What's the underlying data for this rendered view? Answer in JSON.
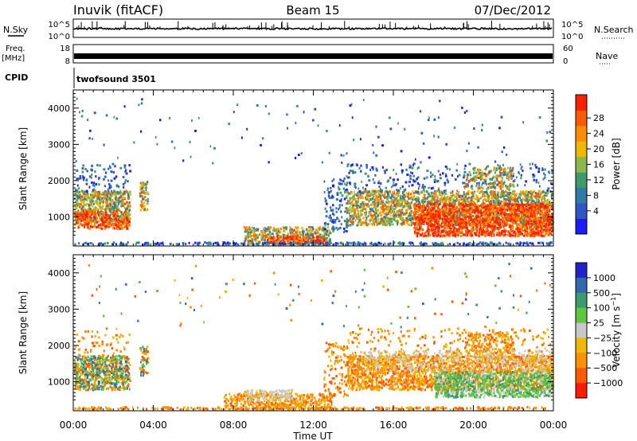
{
  "header": {
    "station": "Inuvik (fitACF)",
    "beam": "Beam 15",
    "date": "07/Dec/2012"
  },
  "strip_labels": {
    "nsky": "N.Sky",
    "nsky_ticks": [
      "10^5",
      "10^0"
    ],
    "nsearch": "N.Search",
    "nsearch_ticks": [
      "10^5",
      "10^0"
    ],
    "freq_top": "Freq.",
    "freq_unit": "[MHz]",
    "freq_ticks": [
      "18",
      "8"
    ],
    "nave": "Nave",
    "nave_ticks": [
      "60",
      "0"
    ],
    "cpid": "CPID",
    "cpid_value": "twofsound 3501"
  },
  "chart_data": [
    {
      "type": "heatmap",
      "name": "power-panel",
      "ylabel": "Slant Range [km]",
      "x_ticks": [
        "00:00",
        "04:00",
        "08:00",
        "12:00",
        "16:00",
        "20:00",
        "00:00"
      ],
      "y_ticks": [
        "1000",
        "2000",
        "3000",
        "4000"
      ],
      "ylim": [
        200,
        4500
      ],
      "xlim_hours": [
        0,
        24
      ],
      "colorbar": {
        "label": "Power [dB]",
        "ticks": [
          "4",
          "8",
          "12",
          "16",
          "20",
          "24",
          "28"
        ],
        "colors": [
          "#1a1aff",
          "#2f55c8",
          "#2f7aa8",
          "#3f9a6a",
          "#8ab84a",
          "#f0b800",
          "#ff8c00",
          "#ff5a00",
          "#ff2000"
        ]
      }
    },
    {
      "type": "heatmap",
      "name": "velocity-panel",
      "ylabel": "Slant Range [km]",
      "x_ticks": [
        "00:00",
        "04:00",
        "08:00",
        "12:00",
        "16:00",
        "20:00",
        "00:00"
      ],
      "y_ticks": [
        "1000",
        "2000",
        "3000",
        "4000"
      ],
      "ylim": [
        200,
        4500
      ],
      "xlim_hours": [
        0,
        24
      ],
      "xlabel": "Time UT",
      "colorbar": {
        "label": "Velocity [m s^-1]",
        "ticks": [
          "1000",
          "500",
          "100",
          "25",
          "−25",
          "−100",
          "−500",
          "−1000"
        ],
        "colors": [
          "#2222cc",
          "#2f6ab0",
          "#3c9a6c",
          "#5cc83c",
          "#c8c8c8",
          "#f0b800",
          "#ff9000",
          "#ff5a00",
          "#ff1a00"
        ]
      }
    }
  ]
}
